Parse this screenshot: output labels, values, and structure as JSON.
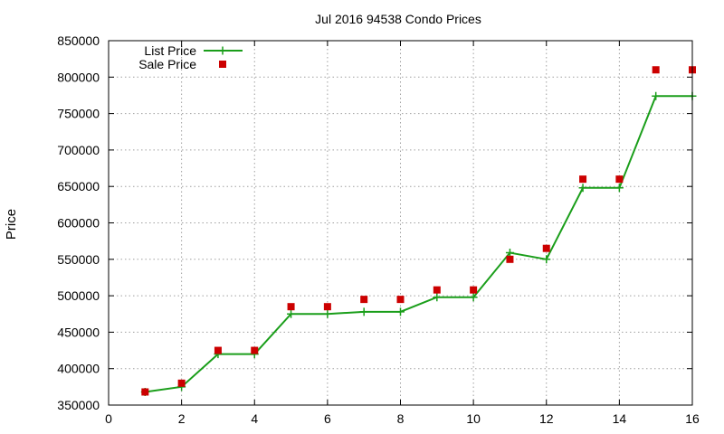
{
  "chart_data": {
    "type": "line",
    "title": "Jul 2016 94538 Condo Prices",
    "xlabel": "",
    "ylabel": "Price",
    "xlim": [
      0,
      16
    ],
    "ylim": [
      350000,
      850000
    ],
    "xticks": [
      "0",
      "2",
      "4",
      "6",
      "8",
      "10",
      "12",
      "14",
      "16"
    ],
    "yticks": [
      "350000",
      "400000",
      "450000",
      "500000",
      "550000",
      "600000",
      "650000",
      "700000",
      "750000",
      "800000",
      "850000"
    ],
    "grid": true,
    "legend_position": "top-left",
    "series": [
      {
        "name": "List Price",
        "style": "line-with-plus-markers",
        "color": "#1a9e1a",
        "x": [
          1,
          2,
          3,
          4,
          5,
          6,
          7,
          8,
          9,
          10,
          11,
          12,
          13,
          14,
          15,
          16
        ],
        "y": [
          368000,
          375000,
          420000,
          420000,
          475000,
          475000,
          478000,
          478000,
          498000,
          498000,
          559000,
          550000,
          648000,
          648000,
          774000,
          774000
        ]
      },
      {
        "name": "Sale Price",
        "style": "square-markers",
        "color": "#cc0000",
        "x": [
          1,
          2,
          3,
          4,
          5,
          6,
          7,
          8,
          9,
          10,
          11,
          12,
          13,
          14,
          15,
          16
        ],
        "y": [
          368000,
          380000,
          425000,
          425000,
          485000,
          485000,
          495000,
          495000,
          508000,
          508000,
          550000,
          565000,
          660000,
          660000,
          810000,
          810000
        ]
      }
    ]
  }
}
